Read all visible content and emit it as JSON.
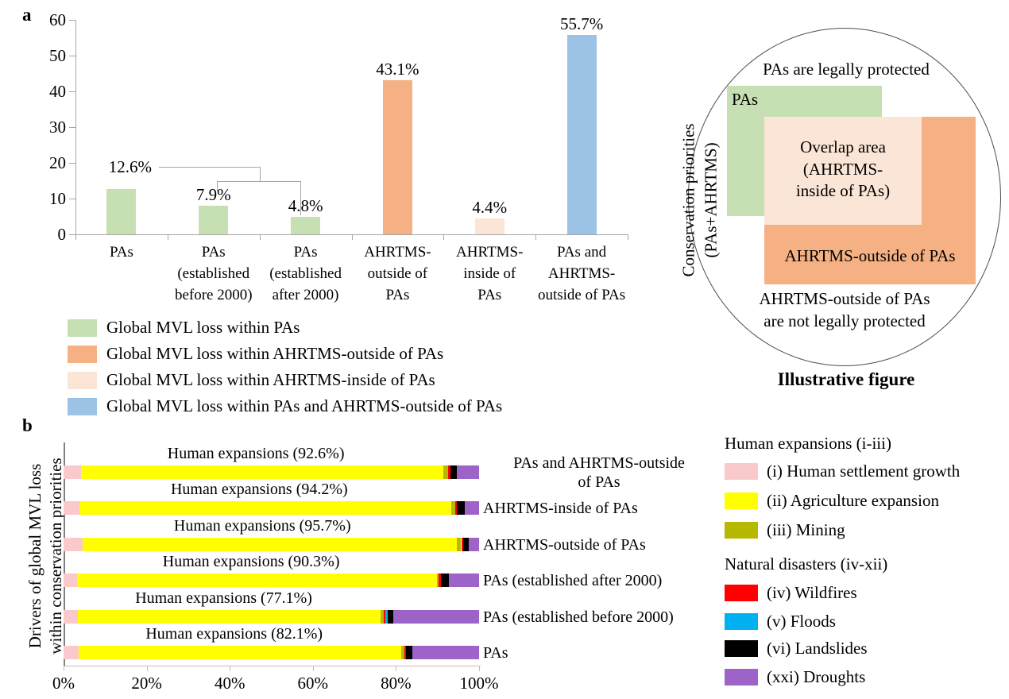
{
  "panel_a_label": "a",
  "panel_b_label": "b",
  "chart_data": [
    {
      "type": "bar",
      "panel": "a",
      "categories": [
        "PAs",
        "PAs\n(established\nbefore 2000)",
        "PAs\n(established\nafter 2000)",
        "AHRTMS-\noutside of\nPAs",
        "AHRTMS-\ninside of\nPAs",
        "PAs and\nAHRTMS-\noutside of PAs"
      ],
      "values": [
        12.6,
        7.9,
        4.8,
        43.1,
        4.4,
        55.7
      ],
      "value_labels": [
        "12.6%",
        "7.9%",
        "4.8%",
        "43.1%",
        "4.4%",
        "55.7%"
      ],
      "bar_colors": [
        "#c6e0b4",
        "#c6e0b4",
        "#c6e0b4",
        "#f5b183",
        "#fbe5d6",
        "#9cc2e5"
      ],
      "ylim": [
        0,
        60
      ],
      "ytick_labels": [
        "0",
        "10",
        "20",
        "30",
        "40",
        "50",
        "60"
      ],
      "grid": false,
      "legend_position": "bottom-left",
      "legend": [
        {
          "label": "Global MVL loss within PAs",
          "color": "#c6e0b4"
        },
        {
          "label": "Global MVL loss within AHRTMS-outside of PAs",
          "color": "#f5b183"
        },
        {
          "label": "Global MVL loss within AHRTMS-inside of PAs",
          "color": "#fbe5d6"
        },
        {
          "label": "Global MVL loss within PAs and AHRTMS-outside of PAs",
          "color": "#9cc2e5"
        }
      ]
    },
    {
      "type": "stacked-bar-horizontal",
      "panel": "b",
      "categories": [
        "PAs and AHRTMS-outside\nof PAs",
        "AHRTMS-inside of PAs",
        "AHRTMS-outside of PAs",
        "PAs (established after 2000)",
        "PAs (established before 2000)",
        "PAs"
      ],
      "row_annotations": [
        "Human expansions (92.6%)",
        "Human expansions (94.2%)",
        "Human expansions (95.7%)",
        "Human expansions (90.3%)",
        "Human expansions (77.1%)",
        "Human expansions (82.1%)"
      ],
      "human_expansion_totals": [
        92.6,
        94.2,
        95.7,
        90.3,
        77.1,
        82.1
      ],
      "series": [
        {
          "name": "(i) Human settlement growth",
          "color": "#f9c9cb",
          "values": [
            4.2,
            3.8,
            4.5,
            3.2,
            3.4,
            3.6
          ]
        },
        {
          "name": "(ii) Agriculture expansion",
          "color": "#ffff00",
          "values": [
            87.2,
            89.6,
            90.2,
            86.6,
            72.9,
            77.6
          ]
        },
        {
          "name": "(iii) Mining",
          "color": "#b7b800",
          "values": [
            1.2,
            0.8,
            1.0,
            0.5,
            0.8,
            0.9
          ]
        },
        {
          "name": "(iv) Wildfires",
          "color": "#ff0000",
          "values": [
            0.5,
            0.4,
            0.5,
            0.6,
            0.4,
            0.4
          ]
        },
        {
          "name": "(v) Floods",
          "color": "#00b0f0",
          "values": [
            0,
            0,
            0,
            0,
            0.5,
            0
          ]
        },
        {
          "name": "(vi) Landslides",
          "color": "#000000",
          "values": [
            1.6,
            1.9,
            1.3,
            1.9,
            1.3,
            1.4
          ]
        },
        {
          "name": "(xxi) Droughts",
          "color": "#9d63c8",
          "values": [
            5.3,
            3.5,
            2.5,
            7.2,
            20.7,
            16.1
          ]
        }
      ],
      "xlim": [
        0,
        100
      ],
      "xtick_labels": [
        "0%",
        "20%",
        "40%",
        "60%",
        "80%",
        "100%"
      ],
      "ylabel": "Drivers of global MVL loss\nwithin  conservation priorities",
      "legend": [
        {
          "type": "header",
          "label": "Human expansions (i-iii)"
        },
        {
          "type": "item",
          "label": "(i) Human settlement growth",
          "color": "#f9c9cb"
        },
        {
          "type": "item",
          "label": "(ii) Agriculture expansion",
          "color": "#ffff00"
        },
        {
          "type": "item",
          "label": "(iii) Mining",
          "color": "#b7b800"
        },
        {
          "type": "header",
          "label": "Natural disasters (iv-xii)"
        },
        {
          "type": "item",
          "label": "(iv) Wildfires",
          "color": "#ff0000"
        },
        {
          "type": "item",
          "label": "(v) Floods",
          "color": "#00b0f0"
        },
        {
          "type": "item",
          "label": "(vi) Landslides",
          "color": "#000000"
        },
        {
          "type": "item",
          "label": "(xxi) Droughts",
          "color": "#9d63c8"
        }
      ]
    }
  ],
  "illustration": {
    "top_text": "PAs are legally protected",
    "pas_label": "PAs",
    "overlap_label": "Overlap area\n(AHRTMS-\ninside of PAs)",
    "outside_label": "AHRTMS-outside of PAs",
    "bottom_text": "AHRTMS-outside of PAs\nare not legally protected",
    "left_axis_label": "Conservation priorities\n(PAs+AHRTMS)",
    "caption": "Illustrative figure",
    "colors": {
      "pas": "#c6e0b4",
      "outside": "#f5b183",
      "overlap": "#fbe5d6"
    }
  }
}
